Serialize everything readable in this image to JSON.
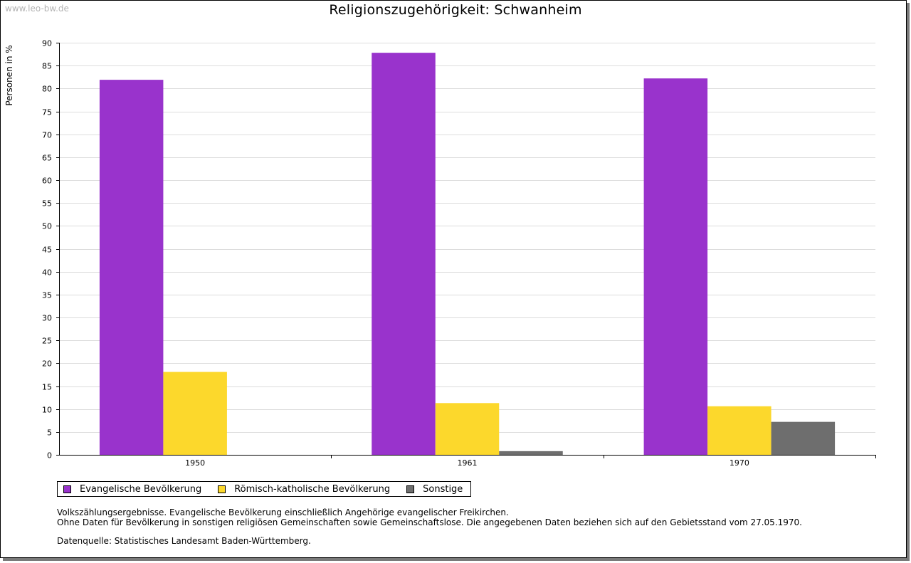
{
  "watermark": "www.leo-bw.de",
  "legend": [
    {
      "label": "Evangelische Bevölkerung",
      "color": "#9933cc"
    },
    {
      "label": "Römisch-katholische Bevölkerung",
      "color": "#fcd82c"
    },
    {
      "label": "Sonstige",
      "color": "#6e6e6e"
    }
  ],
  "notes": {
    "line1": "Volkszählungsergebnisse. Evangelische Bevölkerung einschließlich Angehörige evangelischer Freikirchen.",
    "line2": "Ohne Daten für Bevölkerung in sonstigen religiösen Gemeinschaften sowie Gemeinschaftslose. Die angegebenen Daten beziehen sich auf den Gebietsstand vom 27.05.1970.",
    "source": "Datenquelle: Statistisches Landesamt Baden-Württemberg."
  },
  "chart_data": {
    "type": "bar",
    "title": "Religionszugehörigkeit: Schwanheim",
    "xlabel": "",
    "ylabel": "Personen in %",
    "categories": [
      "1950",
      "1961",
      "1970"
    ],
    "series": [
      {
        "name": "Evangelische Bevölkerung",
        "color": "#9933cc",
        "values": [
          81.9,
          87.8,
          82.2
        ]
      },
      {
        "name": "Römisch-katholische Bevölkerung",
        "color": "#fcd82c",
        "values": [
          18.1,
          11.3,
          10.6
        ]
      },
      {
        "name": "Sonstige",
        "color": "#6e6e6e",
        "values": [
          0,
          0.8,
          7.2
        ]
      }
    ],
    "ylim": [
      0,
      90
    ],
    "ytick_step": 5,
    "grid": true,
    "legend_position": "bottom-left"
  }
}
